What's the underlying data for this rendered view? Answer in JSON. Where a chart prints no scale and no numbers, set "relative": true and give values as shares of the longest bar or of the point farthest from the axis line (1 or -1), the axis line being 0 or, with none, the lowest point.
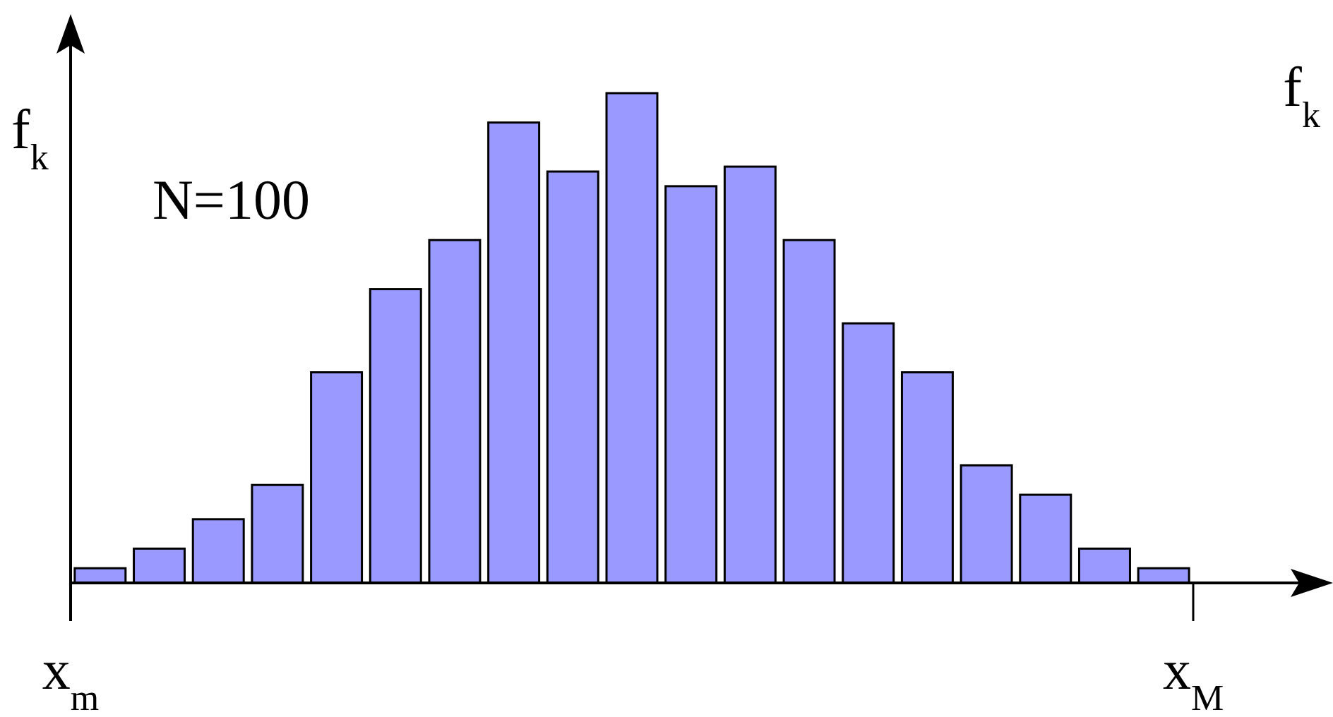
{
  "chart_data": {
    "type": "bar",
    "relative": true,
    "ylabel": "f$_{k}$",
    "annotations": [
      "N=100",
      "f$_{k}$",
      "x$_{m}$",
      "x$_{M}$"
    ],
    "color": "#9999ff",
    "categories": [
      null,
      null,
      null,
      null,
      null,
      null,
      null,
      null,
      null,
      null,
      null,
      null,
      null,
      null,
      null,
      null,
      null,
      null,
      null
    ],
    "values": [
      0.03,
      0.07,
      0.13,
      0.2,
      0.43,
      0.6,
      0.7,
      0.94,
      0.84,
      1,
      0.81,
      0.85,
      0.7,
      0.53,
      0.43,
      0.24,
      0.18,
      0.07,
      0.03
    ]
  }
}
